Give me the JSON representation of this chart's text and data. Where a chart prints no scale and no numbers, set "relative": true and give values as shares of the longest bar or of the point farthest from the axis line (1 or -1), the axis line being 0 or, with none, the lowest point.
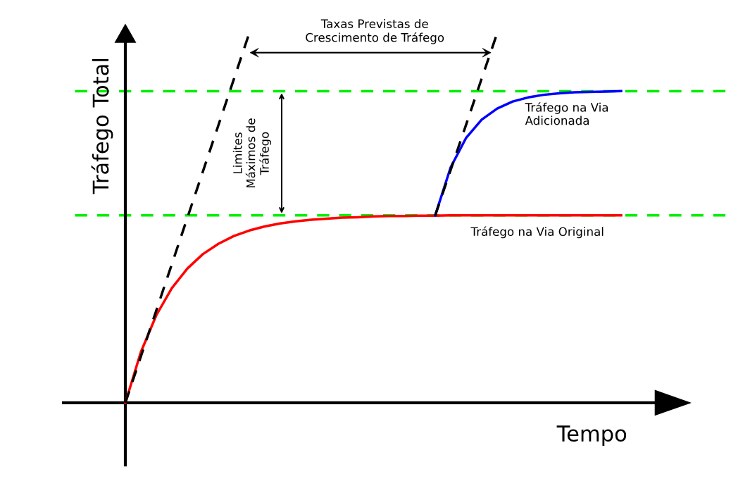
{
  "chart_data": {
    "type": "line",
    "relative": true,
    "xlabel": "Tempo",
    "ylabel": "Tráfego Total",
    "categories": [
      null,
      null,
      null,
      null,
      null,
      null,
      null,
      null,
      null,
      null,
      null,
      null,
      null,
      null,
      null,
      null,
      null,
      null,
      null,
      null,
      null,
      null,
      null,
      null,
      null,
      null,
      null,
      null,
      null,
      null,
      null,
      null,
      null
    ],
    "series": [
      {
        "name": "Tráfego na Via Original",
        "color": "#ff0000",
        "line_style": "solid",
        "values": [
          0,
          0.137,
          0.237,
          0.31,
          0.363,
          0.402,
          0.43,
          0.451,
          0.466,
          0.477,
          0.485,
          0.491,
          0.495,
          0.498,
          0.501,
          0.502,
          0.504,
          0.505,
          0.505,
          0.506,
          0.506,
          0.507,
          0.507,
          0.507,
          0.507,
          0.507,
          0.507,
          0.507,
          0.507,
          0.507,
          0.507,
          0.507,
          0.507
        ]
      },
      {
        "name": "Tráfego na Via\nAdicionada",
        "color": "#0000ff",
        "line_style": "solid",
        "values": [
          null,
          null,
          null,
          null,
          null,
          null,
          null,
          null,
          null,
          null,
          null,
          null,
          null,
          null,
          null,
          null,
          null,
          null,
          null,
          null,
          0.507,
          0.637,
          0.717,
          0.766,
          0.796,
          0.815,
          0.826,
          0.833,
          0.837,
          0.84,
          0.841,
          0.842,
          0.843
        ]
      },
      {
        "color": "#000000",
        "line_style": "dashed",
        "values": [
          0,
          0.125,
          0.25,
          0.375,
          0.5,
          0.625,
          0.75,
          0.875,
          1,
          null,
          null,
          null,
          null,
          null,
          null,
          null,
          null,
          null,
          null,
          null,
          null,
          null,
          null,
          null,
          null,
          null,
          null,
          null,
          null,
          null,
          null,
          null,
          null
        ]
      },
      {
        "color": "#000000",
        "line_style": "dashed",
        "values": [
          null,
          null,
          null,
          null,
          null,
          null,
          null,
          null,
          null,
          null,
          null,
          null,
          null,
          null,
          null,
          null,
          null,
          null,
          null,
          null,
          0.507,
          0.63,
          0.753,
          0.877,
          1,
          null,
          null,
          null,
          null,
          null,
          null,
          null,
          null
        ]
      }
    ],
    "ref_lines": [
      {
        "axis": "y",
        "value": 0.507,
        "color": "#00ee00",
        "line_style": "dashed"
      },
      {
        "axis": "y",
        "value": 0.843,
        "color": "#00ee00",
        "line_style": "dashed"
      }
    ],
    "annotations": [
      "Taxas Previstas de\nCrescimento de Tráfego",
      "Limites\nMáximos de\nTráfego"
    ]
  }
}
